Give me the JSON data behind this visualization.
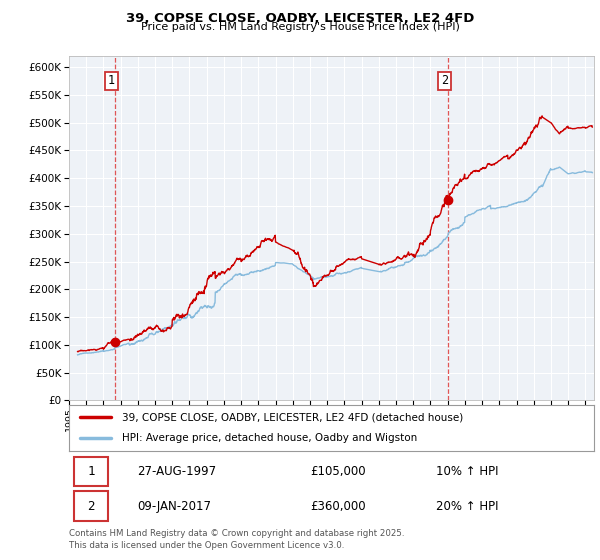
{
  "title": "39, COPSE CLOSE, OADBY, LEICESTER, LE2 4FD",
  "subtitle": "Price paid vs. HM Land Registry's House Price Index (HPI)",
  "ylim": [
    0,
    620000
  ],
  "yticks": [
    0,
    50000,
    100000,
    150000,
    200000,
    250000,
    300000,
    350000,
    400000,
    450000,
    500000,
    550000,
    600000
  ],
  "xlim_start": 1995.0,
  "xlim_end": 2025.5,
  "sale1_x": 1997.65,
  "sale1_y": 105000,
  "sale2_x": 2017.03,
  "sale2_y": 360000,
  "sale1_date": "27-AUG-1997",
  "sale1_price": "£105,000",
  "sale1_hpi": "10% ↑ HPI",
  "sale2_date": "09-JAN-2017",
  "sale2_price": "£360,000",
  "sale2_hpi": "20% ↑ HPI",
  "legend_line1": "39, COPSE CLOSE, OADBY, LEICESTER, LE2 4FD (detached house)",
  "legend_line2": "HPI: Average price, detached house, Oadby and Wigston",
  "footer": "Contains HM Land Registry data © Crown copyright and database right 2025.\nThis data is licensed under the Open Government Licence v3.0.",
  "line_color_red": "#cc0000",
  "line_color_blue": "#88bbdd",
  "bg_color": "#eef2f7",
  "grid_color": "#ffffff",
  "dashed_color": "#dd4444",
  "box_color": "#cc3333"
}
